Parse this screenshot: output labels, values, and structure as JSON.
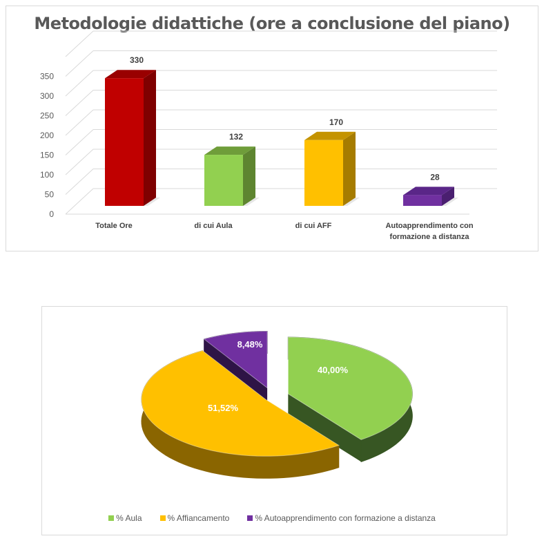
{
  "chart_data": [
    {
      "type": "bar",
      "title": "Metodologie didattiche (ore a conclusione del piano)",
      "categories": [
        "Totale Ore",
        "di cui Aula",
        "di cui AFF",
        "Autoapprendimento con formazione a distanza"
      ],
      "category_lines": [
        [
          "Totale Ore"
        ],
        [
          "di cui Aula"
        ],
        [
          "di cui AFF"
        ],
        [
          "Autoapprendimento con",
          "formazione a distanza"
        ]
      ],
      "values": [
        330,
        132,
        170,
        28
      ],
      "value_labels": [
        "330",
        "132",
        "170",
        "28"
      ],
      "colors": [
        "#c00000",
        "#92d050",
        "#ffc000",
        "#7030a0"
      ],
      "side_colors": [
        "#7f0000",
        "#5e8530",
        "#a67c00",
        "#4a1f70"
      ],
      "top_colors": [
        "#990000",
        "#6f9d3a",
        "#c49300",
        "#5a2688"
      ],
      "yticks": [
        "0",
        "50",
        "100",
        "150",
        "200",
        "250",
        "300",
        "350"
      ],
      "ylim": [
        0,
        400
      ],
      "grid": true,
      "xlabel": "",
      "ylabel": ""
    },
    {
      "type": "pie",
      "labels": [
        "%  Aula",
        "% Affiancamento",
        "% Autoapprendimento con formazione a distanza"
      ],
      "values": [
        40.0,
        51.52,
        8.48
      ],
      "value_labels": [
        "40,00%",
        "51,52%",
        "8,48%"
      ],
      "colors": [
        "#92d050",
        "#ffc000",
        "#7030a0"
      ],
      "side_colors": [
        "#375623",
        "#8a6500",
        "#2e1446"
      ],
      "legend": "bottom"
    }
  ]
}
